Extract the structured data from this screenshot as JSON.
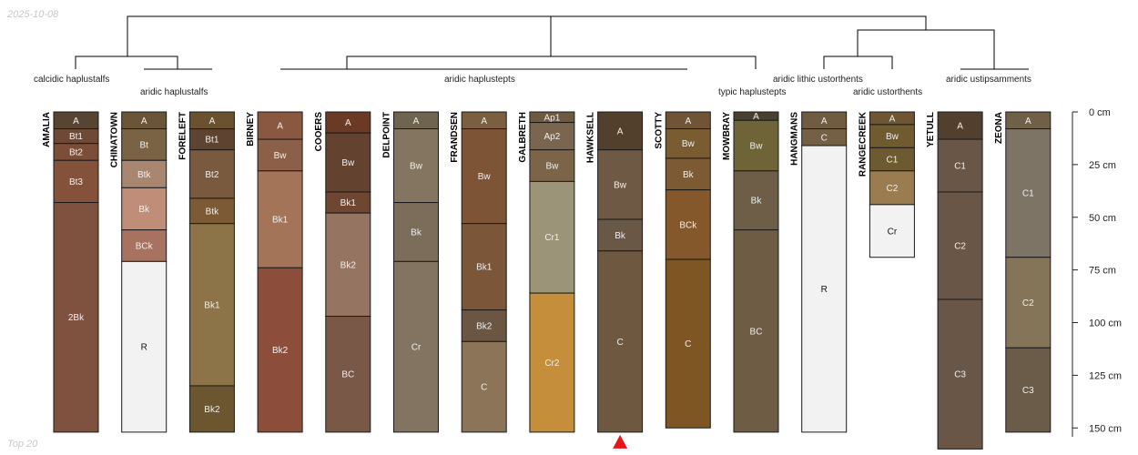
{
  "watermarks": {
    "date": "2025-10-08",
    "caption": "Top 20"
  },
  "depth_axis": {
    "unit": "cm",
    "max": 160,
    "ticks": [
      "0 cm",
      "25 cm",
      "50 cm",
      "75 cm",
      "100 cm",
      "125 cm",
      "150 cm"
    ]
  },
  "groups": [
    {
      "label": "calcidic haplustalfs"
    },
    {
      "label": "aridic haplustalfs"
    },
    {
      "label": "aridic haplustepts"
    },
    {
      "label": "typic haplustepts"
    },
    {
      "label": "aridic lithic ustorthents"
    },
    {
      "label": "aridic ustorthents"
    },
    {
      "label": "aridic ustipsamments"
    }
  ],
  "profiles": [
    {
      "name": "AMALIA",
      "horizons": [
        {
          "name": "A",
          "top": 0,
          "bottom": 8,
          "color": "#584432"
        },
        {
          "name": "Bt1",
          "top": 8,
          "bottom": 15,
          "color": "#6e4a36"
        },
        {
          "name": "Bt2",
          "top": 15,
          "bottom": 23,
          "color": "#7c4e38"
        },
        {
          "name": "Bt3",
          "top": 23,
          "bottom": 43,
          "color": "#84523a"
        },
        {
          "name": "2Bk",
          "top": 43,
          "bottom": 152,
          "color": "#7e523e"
        }
      ]
    },
    {
      "name": "CHINATOWN",
      "horizons": [
        {
          "name": "A",
          "top": 0,
          "bottom": 8,
          "color": "#6a5538"
        },
        {
          "name": "Bt",
          "top": 8,
          "bottom": 23,
          "color": "#7a6244"
        },
        {
          "name": "Btk",
          "top": 23,
          "bottom": 36,
          "color": "#a88670"
        },
        {
          "name": "Bk",
          "top": 36,
          "bottom": 56,
          "color": "#c08e78"
        },
        {
          "name": "BCk",
          "top": 56,
          "bottom": 71,
          "color": "#a87260"
        },
        {
          "name": "R",
          "top": 71,
          "bottom": 152,
          "color": "#f2f2f2"
        }
      ]
    },
    {
      "name": "FORELEFT",
      "horizons": [
        {
          "name": "A",
          "top": 0,
          "bottom": 8,
          "color": "#6a5230"
        },
        {
          "name": "Bt1",
          "top": 8,
          "bottom": 18,
          "color": "#5e4430"
        },
        {
          "name": "Bt2",
          "top": 18,
          "bottom": 41,
          "color": "#7a5a3e"
        },
        {
          "name": "Btk",
          "top": 41,
          "bottom": 53,
          "color": "#7c5a34"
        },
        {
          "name": "Bk1",
          "top": 53,
          "bottom": 130,
          "color": "#8c7448"
        },
        {
          "name": "Bk2",
          "top": 130,
          "bottom": 152,
          "color": "#6c5630"
        }
      ]
    },
    {
      "name": "BIRNEY",
      "horizons": [
        {
          "name": "A",
          "top": 0,
          "bottom": 13,
          "color": "#8a5840"
        },
        {
          "name": "Bw",
          "top": 13,
          "bottom": 28,
          "color": "#8c6048"
        },
        {
          "name": "Bk1",
          "top": 28,
          "bottom": 74,
          "color": "#a47458"
        },
        {
          "name": "Bk2",
          "top": 74,
          "bottom": 152,
          "color": "#8c4e3a"
        }
      ]
    },
    {
      "name": "COOERS",
      "horizons": [
        {
          "name": "A",
          "top": 0,
          "bottom": 10,
          "color": "#6a3a24"
        },
        {
          "name": "Bw",
          "top": 10,
          "bottom": 38,
          "color": "#644230"
        },
        {
          "name": "Bk1",
          "top": 38,
          "bottom": 48,
          "color": "#6e4632"
        },
        {
          "name": "Bk2",
          "top": 48,
          "bottom": 97,
          "color": "#967462"
        },
        {
          "name": "BC",
          "top": 97,
          "bottom": 152,
          "color": "#7a5848"
        }
      ]
    },
    {
      "name": "DELPOINT",
      "horizons": [
        {
          "name": "A",
          "top": 0,
          "bottom": 8,
          "color": "#6e6450"
        },
        {
          "name": "Bw",
          "top": 8,
          "bottom": 43,
          "color": "#847560"
        },
        {
          "name": "Bk",
          "top": 43,
          "bottom": 71,
          "color": "#7c6c5a"
        },
        {
          "name": "Cr",
          "top": 71,
          "bottom": 152,
          "color": "#827460"
        }
      ]
    },
    {
      "name": "FRANDSEN",
      "horizons": [
        {
          "name": "A",
          "top": 0,
          "bottom": 8,
          "color": "#7a6040"
        },
        {
          "name": "Bw",
          "top": 8,
          "bottom": 53,
          "color": "#7e5436"
        },
        {
          "name": "Bk1",
          "top": 53,
          "bottom": 94,
          "color": "#7c5638"
        },
        {
          "name": "Bk2",
          "top": 94,
          "bottom": 109,
          "color": "#6a5642"
        },
        {
          "name": "C",
          "top": 109,
          "bottom": 152,
          "color": "#8c7458"
        }
      ]
    },
    {
      "name": "GALBRETH",
      "horizons": [
        {
          "name": "Ap1",
          "top": 0,
          "bottom": 5,
          "color": "#6e5a40"
        },
        {
          "name": "Ap2",
          "top": 5,
          "bottom": 18,
          "color": "#7a6650"
        },
        {
          "name": "Bw",
          "top": 18,
          "bottom": 33,
          "color": "#7c6448"
        },
        {
          "name": "Cr1",
          "top": 33,
          "bottom": 86,
          "color": "#9c9478"
        },
        {
          "name": "Cr2",
          "top": 86,
          "bottom": 152,
          "color": "#c48e3a"
        }
      ]
    },
    {
      "name": "HAWKSELL",
      "horizons": [
        {
          "name": "A",
          "top": 0,
          "bottom": 18,
          "color": "#52402c"
        },
        {
          "name": "Bw",
          "top": 18,
          "bottom": 51,
          "color": "#6e5a44"
        },
        {
          "name": "Bk",
          "top": 51,
          "bottom": 66,
          "color": "#6a5846"
        },
        {
          "name": "C",
          "top": 66,
          "bottom": 152,
          "color": "#6e5840"
        }
      ]
    },
    {
      "name": "SCOTTY",
      "horizons": [
        {
          "name": "A",
          "top": 0,
          "bottom": 8,
          "color": "#705438"
        },
        {
          "name": "Bw",
          "top": 8,
          "bottom": 22,
          "color": "#7a5c32"
        },
        {
          "name": "Bk",
          "top": 22,
          "bottom": 37,
          "color": "#7c5a34"
        },
        {
          "name": "BCk",
          "top": 37,
          "bottom": 70,
          "color": "#84582a"
        },
        {
          "name": "C",
          "top": 70,
          "bottom": 150,
          "color": "#7e5624"
        }
      ]
    },
    {
      "name": "MOWBRAY",
      "horizons": [
        {
          "name": "A",
          "top": 0,
          "bottom": 4,
          "color": "#ffffff"
        },
        {
          "name": "A",
          "top": 0,
          "bottom": 4,
          "color": "#4a4030"
        },
        {
          "name": "Bw",
          "top": 4,
          "bottom": 28,
          "color": "#6e6438"
        },
        {
          "name": "Bk",
          "top": 28,
          "bottom": 56,
          "color": "#6e5e48"
        },
        {
          "name": "BC",
          "top": 56,
          "bottom": 152,
          "color": "#6e5c44"
        }
      ]
    },
    {
      "name": "HANGMANS",
      "horizons": [
        {
          "name": "A",
          "top": 0,
          "bottom": 8,
          "color": "#705c40"
        },
        {
          "name": "C",
          "top": 8,
          "bottom": 16,
          "color": "#746044"
        },
        {
          "name": "R",
          "top": 16,
          "bottom": 152,
          "color": "#f2f2f2"
        }
      ]
    },
    {
      "name": "RANGECREEK",
      "horizons": [
        {
          "name": "A",
          "top": 0,
          "bottom": 6,
          "color": "#6e5634"
        },
        {
          "name": "Bw",
          "top": 6,
          "bottom": 17,
          "color": "#705a30"
        },
        {
          "name": "C1",
          "top": 17,
          "bottom": 28,
          "color": "#6e5a30"
        },
        {
          "name": "C2",
          "top": 28,
          "bottom": 44,
          "color": "#9a7c50"
        },
        {
          "name": "Cr",
          "top": 44,
          "bottom": 69,
          "color": "#f2f2f2"
        }
      ]
    },
    {
      "name": "YETULL",
      "horizons": [
        {
          "name": "A",
          "top": 0,
          "bottom": 13,
          "color": "#52402e"
        },
        {
          "name": "C1",
          "top": 13,
          "bottom": 38,
          "color": "#6a5646"
        },
        {
          "name": "C2",
          "top": 38,
          "bottom": 89,
          "color": "#6a5646"
        },
        {
          "name": "C3",
          "top": 89,
          "bottom": 160,
          "color": "#6a5646"
        }
      ]
    },
    {
      "name": "ZEONA",
      "horizons": [
        {
          "name": "A",
          "top": 0,
          "bottom": 8,
          "color": "#706048"
        },
        {
          "name": "C1",
          "top": 8,
          "bottom": 69,
          "color": "#7e7466"
        },
        {
          "name": "C2",
          "top": 69,
          "bottom": 112,
          "color": "#847458"
        },
        {
          "name": "C3",
          "top": 112,
          "bottom": 152,
          "color": "#6a5c48"
        }
      ]
    }
  ],
  "marker": {
    "profile": "HAWKSELL",
    "color": "#e8141a"
  }
}
